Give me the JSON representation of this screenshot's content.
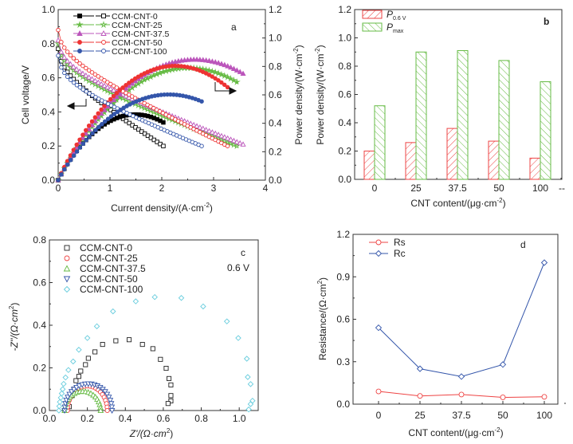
{
  "chart_data": [
    {
      "id": "a",
      "type": "line",
      "panel_label": "a",
      "xlabel": "Current density/(A·cm",
      "xlabel_sup": "-2",
      "xlabel_end": ")",
      "ylabel": "Cell voltage/V",
      "y2label": "Power density/(W·cm",
      "y2label_sup": "-2",
      "y2label_end": ")",
      "xlim": [
        0,
        4
      ],
      "ylim": [
        0,
        1.0
      ],
      "y2lim": [
        0,
        1.2
      ],
      "xticks": [
        "0",
        "1",
        "2",
        "3",
        "4"
      ],
      "yticks": [
        "0.0",
        "0.2",
        "0.4",
        "0.6",
        "0.8",
        "1.0"
      ],
      "y2ticks": [
        "0.0",
        "0.2",
        "0.4",
        "0.6",
        "0.8",
        "1.0",
        "1.2"
      ],
      "legend_position": "top-left",
      "series": [
        {
          "name": "CCM-CNT-0",
          "color": "#000000",
          "marker": "square",
          "imax": 2.03,
          "ocv": 0.77,
          "v_end": 0.2
        },
        {
          "name": "CCM-CNT-25",
          "color": "#66bb44",
          "marker": "star",
          "imax": 3.45,
          "ocv": 0.8,
          "v_end": 0.2
        },
        {
          "name": "CCM-CNT-37.5",
          "color": "#bb55bb",
          "marker": "triangle",
          "imax": 3.57,
          "ocv": 0.82,
          "v_end": 0.21
        },
        {
          "name": "CCM-CNT-50",
          "color": "#ee3333",
          "marker": "circle",
          "imax": 3.27,
          "ocv": 0.88,
          "v_end": 0.2
        },
        {
          "name": "CCM-CNT-100",
          "color": "#3355aa",
          "marker": "circle",
          "imax": 2.77,
          "ocv": 0.73,
          "v_end": 0.2
        }
      ]
    },
    {
      "id": "b",
      "type": "bar",
      "panel_label": "b",
      "xlabel": "CNT content/(μg·cm",
      "xlabel_sup": "-2",
      "xlabel_end": ")",
      "ylabel": "Power density/(W·cm",
      "ylabel_sup": "-2",
      "ylabel_end": ")",
      "ylim": [
        0,
        1.2
      ],
      "yticks": [
        "0.0",
        "0.2",
        "0.4",
        "0.6",
        "0.8",
        "1.0",
        "1.2"
      ],
      "categories": [
        "0",
        "25",
        "37.5",
        "50",
        "100"
      ],
      "extra_tick": "--",
      "legend_position": "top-left",
      "series": [
        {
          "name": "P",
          "sub": "0.6 V",
          "color": "#ee4444",
          "values": [
            0.2,
            0.26,
            0.36,
            0.27,
            0.15
          ]
        },
        {
          "name": "P",
          "sub": "max",
          "color": "#66bb44",
          "values": [
            0.52,
            0.9,
            0.91,
            0.84,
            0.69
          ]
        }
      ]
    },
    {
      "id": "c",
      "type": "scatter",
      "panel_label": "c",
      "annotation": "0.6 V",
      "xlabel": "Z'/(Ω·cm",
      "xlabel_sup": "2",
      "xlabel_end": ")",
      "ylabel": "-Z''/(Ω·cm",
      "ylabel_sup": "2",
      "ylabel_end": ")",
      "xlim": [
        0,
        1.1
      ],
      "ylim": [
        0,
        0.8
      ],
      "xticks": [
        "0.0",
        "0.2",
        "0.4",
        "0.6",
        "0.8",
        "1.0"
      ],
      "yticks": [
        "0.0",
        "0.2",
        "0.4",
        "0.6",
        "0.8"
      ],
      "legend_position": "top-left",
      "series": [
        {
          "name": "CCM-CNT-0",
          "color": "#222222",
          "marker": "square",
          "points": [
            [
              0.105,
              0.018
            ],
            [
              0.12,
              0.07
            ],
            [
              0.13,
              0.1
            ],
            [
              0.14,
              0.14
            ],
            [
              0.155,
              0.16
            ],
            [
              0.165,
              0.185
            ],
            [
              0.19,
              0.215
            ],
            [
              0.205,
              0.245
            ],
            [
              0.24,
              0.275
            ],
            [
              0.28,
              0.31
            ],
            [
              0.35,
              0.327
            ],
            [
              0.42,
              0.332
            ],
            [
              0.49,
              0.31
            ],
            [
              0.545,
              0.29
            ],
            [
              0.585,
              0.24
            ],
            [
              0.615,
              0.198
            ],
            [
              0.63,
              0.15
            ],
            [
              0.64,
              0.12
            ],
            [
              0.64,
              0.07
            ],
            [
              0.64,
              0.045
            ],
            [
              0.625,
              0.033
            ]
          ]
        },
        {
          "name": "CCM-CNT-25",
          "color": "#ee4444",
          "marker": "circle",
          "center": 0.2,
          "r": 0.105,
          "h": 0.115,
          "n": 22
        },
        {
          "name": "CCM-CNT-37.5",
          "color": "#66bb44",
          "marker": "triangle",
          "center": 0.175,
          "r": 0.095,
          "h": 0.09,
          "n": 20
        },
        {
          "name": "CCM-CNT-50",
          "color": "#3355aa",
          "marker": "triangle-down",
          "center": 0.205,
          "r": 0.125,
          "h": 0.125,
          "n": 24
        },
        {
          "name": "CCM-CNT-100",
          "color": "#66ccdd",
          "marker": "diamond",
          "points": [
            [
              0.05,
              0.0
            ],
            [
              0.052,
              0.02
            ],
            [
              0.055,
              0.04
            ],
            [
              0.06,
              0.06
            ],
            [
              0.065,
              0.08
            ],
            [
              0.07,
              0.1
            ],
            [
              0.075,
              0.125
            ],
            [
              0.085,
              0.155
            ],
            [
              0.1,
              0.19
            ],
            [
              0.125,
              0.23
            ],
            [
              0.155,
              0.285
            ],
            [
              0.2,
              0.34
            ],
            [
              0.25,
              0.395
            ],
            [
              0.335,
              0.465
            ],
            [
              0.455,
              0.512
            ],
            [
              0.555,
              0.532
            ],
            [
              0.695,
              0.528
            ],
            [
              0.81,
              0.488
            ],
            [
              0.935,
              0.418
            ],
            [
              0.995,
              0.34
            ],
            [
              1.04,
              0.243
            ],
            [
              1.045,
              0.157
            ],
            [
              1.06,
              0.124
            ],
            [
              1.07,
              0.046
            ],
            [
              1.06,
              0.03
            ],
            [
              1.05,
              0.005
            ]
          ]
        }
      ]
    },
    {
      "id": "d",
      "type": "line",
      "panel_label": "d",
      "xlabel": "CNT content/(μg·cm",
      "xlabel_sup": "-2",
      "xlabel_end": ")",
      "ylabel": "Resistance/(Ω·cm",
      "ylabel_sup": "2",
      "ylabel_end": ")",
      "ylim": [
        0,
        1.2
      ],
      "yticks": [
        "0.0",
        "0.3",
        "0.6",
        "0.9",
        "1.2"
      ],
      "categories": [
        "0",
        "25",
        "37.5",
        "50",
        "100"
      ],
      "legend_position": "top-left",
      "series": [
        {
          "name": "Rs",
          "color": "#ee4444",
          "marker": "circle",
          "values": [
            0.09,
            0.058,
            0.068,
            0.048,
            0.052
          ]
        },
        {
          "name": "Rc",
          "color": "#3355aa",
          "marker": "diamond",
          "values": [
            0.54,
            0.25,
            0.195,
            0.28,
            1.0
          ]
        }
      ]
    }
  ]
}
